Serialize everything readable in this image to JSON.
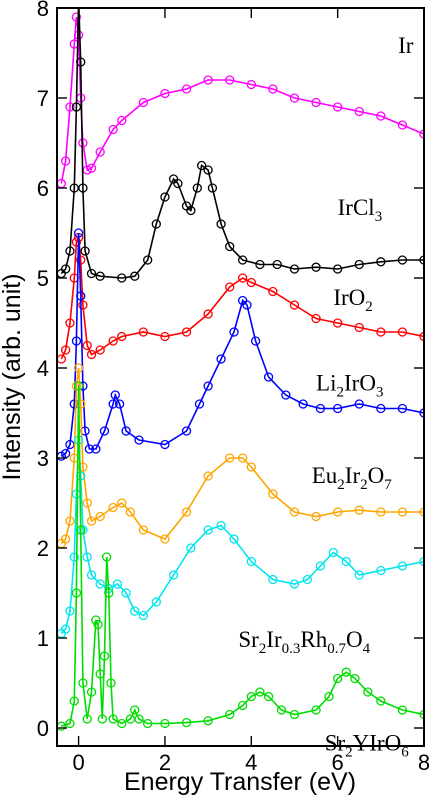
{
  "chart_data": {
    "type": "line",
    "xlabel": "Energy Transfer (eV)",
    "ylabel": "Intensity (arb. unit)",
    "xlim": [
      -0.5,
      8
    ],
    "ylim": [
      -0.2,
      8
    ],
    "xticks": [
      0,
      2,
      4,
      6,
      8
    ],
    "yticks": [
      0,
      1,
      2,
      3,
      4,
      5,
      6,
      7,
      8
    ],
    "grid": false,
    "legend": "inline-labels-right",
    "series": [
      {
        "name": "Ir",
        "label_parts": [
          {
            "t": "Ir"
          }
        ],
        "color": "#ff00ff",
        "label_pos": [
          7.4,
          7.5
        ],
        "points": [
          [
            -0.4,
            6.05
          ],
          [
            -0.3,
            6.3
          ],
          [
            -0.2,
            6.9
          ],
          [
            -0.1,
            7.6
          ],
          [
            -0.05,
            7.9
          ],
          [
            0.0,
            7.7
          ],
          [
            0.05,
            7.0
          ],
          [
            0.1,
            6.5
          ],
          [
            0.2,
            6.2
          ],
          [
            0.3,
            6.22
          ],
          [
            0.5,
            6.4
          ],
          [
            0.8,
            6.65
          ],
          [
            1.0,
            6.75
          ],
          [
            1.5,
            6.95
          ],
          [
            2.0,
            7.05
          ],
          [
            2.5,
            7.1
          ],
          [
            3.0,
            7.2
          ],
          [
            3.5,
            7.2
          ],
          [
            4.0,
            7.15
          ],
          [
            4.5,
            7.1
          ],
          [
            5.0,
            7.0
          ],
          [
            5.5,
            6.95
          ],
          [
            6.0,
            6.9
          ],
          [
            6.5,
            6.85
          ],
          [
            7.0,
            6.8
          ],
          [
            7.5,
            6.7
          ],
          [
            8.0,
            6.6
          ]
        ]
      },
      {
        "name": "IrCl3",
        "label_parts": [
          {
            "t": "IrCl"
          },
          {
            "t": "3",
            "sub": true
          }
        ],
        "color": "#000000",
        "label_pos": [
          6.0,
          5.7
        ],
        "points": [
          [
            -0.4,
            5.05
          ],
          [
            -0.3,
            5.1
          ],
          [
            -0.2,
            5.3
          ],
          [
            -0.1,
            6.0
          ],
          [
            -0.05,
            6.9
          ],
          [
            0.0,
            8.1
          ],
          [
            0.05,
            7.4
          ],
          [
            0.1,
            6.0
          ],
          [
            0.15,
            5.3
          ],
          [
            0.3,
            5.05
          ],
          [
            0.5,
            5.02
          ],
          [
            1.0,
            5.0
          ],
          [
            1.3,
            5.02
          ],
          [
            1.6,
            5.2
          ],
          [
            1.8,
            5.6
          ],
          [
            2.0,
            5.9
          ],
          [
            2.2,
            6.1
          ],
          [
            2.3,
            6.05
          ],
          [
            2.5,
            5.8
          ],
          [
            2.6,
            5.75
          ],
          [
            2.75,
            6.0
          ],
          [
            2.85,
            6.25
          ],
          [
            3.0,
            6.2
          ],
          [
            3.1,
            6.0
          ],
          [
            3.3,
            5.6
          ],
          [
            3.5,
            5.35
          ],
          [
            3.8,
            5.2
          ],
          [
            4.2,
            5.15
          ],
          [
            4.6,
            5.15
          ],
          [
            5.0,
            5.1
          ],
          [
            5.5,
            5.12
          ],
          [
            6.0,
            5.1
          ],
          [
            6.5,
            5.15
          ],
          [
            7.0,
            5.18
          ],
          [
            7.5,
            5.2
          ],
          [
            8.0,
            5.2
          ]
        ]
      },
      {
        "name": "IrO2",
        "label_parts": [
          {
            "t": "IrO"
          },
          {
            "t": "2",
            "sub": true
          }
        ],
        "color": "#ff0000",
        "label_pos": [
          5.9,
          4.7
        ],
        "points": [
          [
            -0.4,
            4.1
          ],
          [
            -0.3,
            4.2
          ],
          [
            -0.2,
            4.5
          ],
          [
            -0.1,
            5.0
          ],
          [
            -0.05,
            5.4
          ],
          [
            0.0,
            5.45
          ],
          [
            0.05,
            5.2
          ],
          [
            0.1,
            4.7
          ],
          [
            0.2,
            4.25
          ],
          [
            0.3,
            4.15
          ],
          [
            0.5,
            4.2
          ],
          [
            0.8,
            4.3
          ],
          [
            1.0,
            4.35
          ],
          [
            1.5,
            4.4
          ],
          [
            2.0,
            4.35
          ],
          [
            2.5,
            4.4
          ],
          [
            3.0,
            4.6
          ],
          [
            3.5,
            4.9
          ],
          [
            3.8,
            5.0
          ],
          [
            4.0,
            4.95
          ],
          [
            4.5,
            4.85
          ],
          [
            5.0,
            4.7
          ],
          [
            5.5,
            4.55
          ],
          [
            6.0,
            4.5
          ],
          [
            6.5,
            4.45
          ],
          [
            7.0,
            4.4
          ],
          [
            7.5,
            4.4
          ],
          [
            8.0,
            4.35
          ]
        ]
      },
      {
        "name": "Li2IrO3",
        "label_parts": [
          {
            "t": "Li"
          },
          {
            "t": "2",
            "sub": true
          },
          {
            "t": "IrO"
          },
          {
            "t": "3",
            "sub": true
          }
        ],
        "color": "#0000ff",
        "label_pos": [
          5.5,
          3.75
        ],
        "points": [
          [
            -0.4,
            3.02
          ],
          [
            -0.3,
            3.05
          ],
          [
            -0.2,
            3.15
          ],
          [
            -0.1,
            3.6
          ],
          [
            -0.05,
            4.3
          ],
          [
            0.0,
            5.5
          ],
          [
            0.05,
            4.8
          ],
          [
            0.1,
            3.8
          ],
          [
            0.15,
            3.3
          ],
          [
            0.25,
            3.1
          ],
          [
            0.4,
            3.1
          ],
          [
            0.6,
            3.3
          ],
          [
            0.8,
            3.6
          ],
          [
            0.85,
            3.7
          ],
          [
            0.95,
            3.6
          ],
          [
            1.1,
            3.3
          ],
          [
            1.4,
            3.2
          ],
          [
            2.0,
            3.15
          ],
          [
            2.5,
            3.3
          ],
          [
            2.8,
            3.6
          ],
          [
            3.0,
            3.8
          ],
          [
            3.3,
            4.1
          ],
          [
            3.6,
            4.4
          ],
          [
            3.8,
            4.75
          ],
          [
            3.9,
            4.7
          ],
          [
            4.1,
            4.3
          ],
          [
            4.4,
            3.9
          ],
          [
            4.8,
            3.7
          ],
          [
            5.2,
            3.6
          ],
          [
            5.6,
            3.55
          ],
          [
            6.0,
            3.55
          ],
          [
            6.5,
            3.6
          ],
          [
            7.0,
            3.55
          ],
          [
            7.5,
            3.55
          ],
          [
            8.0,
            3.5
          ]
        ]
      },
      {
        "name": "Eu2Ir2O7",
        "label_parts": [
          {
            "t": "Eu"
          },
          {
            "t": "2",
            "sub": true
          },
          {
            "t": "Ir"
          },
          {
            "t": "2",
            "sub": true
          },
          {
            "t": "O"
          },
          {
            "t": "7",
            "sub": true
          }
        ],
        "color": "#ffa500",
        "label_pos": [
          5.4,
          2.72
        ],
        "points": [
          [
            -0.4,
            2.05
          ],
          [
            -0.3,
            2.1
          ],
          [
            -0.2,
            2.3
          ],
          [
            -0.1,
            3.0
          ],
          [
            -0.05,
            3.8
          ],
          [
            0.0,
            4.0
          ],
          [
            0.05,
            3.6
          ],
          [
            0.1,
            2.9
          ],
          [
            0.2,
            2.5
          ],
          [
            0.3,
            2.3
          ],
          [
            0.5,
            2.35
          ],
          [
            0.8,
            2.45
          ],
          [
            1.0,
            2.5
          ],
          [
            1.2,
            2.4
          ],
          [
            1.5,
            2.2
          ],
          [
            2.0,
            2.1
          ],
          [
            2.5,
            2.4
          ],
          [
            3.0,
            2.8
          ],
          [
            3.5,
            3.0
          ],
          [
            3.8,
            3.0
          ],
          [
            4.0,
            2.9
          ],
          [
            4.5,
            2.6
          ],
          [
            5.0,
            2.4
          ],
          [
            5.5,
            2.35
          ],
          [
            6.0,
            2.4
          ],
          [
            6.5,
            2.42
          ],
          [
            7.0,
            2.4
          ],
          [
            7.5,
            2.4
          ],
          [
            8.0,
            2.4
          ]
        ]
      },
      {
        "name": "Sr2Ir0.3Rh0.7O4",
        "label_parts": [
          {
            "t": "Sr"
          },
          {
            "t": "2",
            "sub": true
          },
          {
            "t": "Ir"
          },
          {
            "t": "0.3",
            "sub": true
          },
          {
            "t": "Rh"
          },
          {
            "t": "0.7",
            "sub": true
          },
          {
            "t": "O"
          },
          {
            "t": "4",
            "sub": true
          }
        ],
        "color": "#00e5ee",
        "label_pos": [
          3.7,
          0.9
        ],
        "points": [
          [
            -0.4,
            1.05
          ],
          [
            -0.3,
            1.1
          ],
          [
            -0.2,
            1.3
          ],
          [
            -0.1,
            1.9
          ],
          [
            -0.05,
            2.6
          ],
          [
            0.0,
            3.2
          ],
          [
            0.05,
            2.8
          ],
          [
            0.1,
            2.2
          ],
          [
            0.2,
            1.9
          ],
          [
            0.3,
            1.7
          ],
          [
            0.5,
            1.6
          ],
          [
            0.7,
            1.55
          ],
          [
            0.9,
            1.6
          ],
          [
            1.1,
            1.5
          ],
          [
            1.3,
            1.3
          ],
          [
            1.5,
            1.25
          ],
          [
            1.8,
            1.4
          ],
          [
            2.2,
            1.7
          ],
          [
            2.6,
            2.0
          ],
          [
            3.0,
            2.2
          ],
          [
            3.3,
            2.25
          ],
          [
            3.6,
            2.1
          ],
          [
            4.0,
            1.85
          ],
          [
            4.5,
            1.65
          ],
          [
            5.0,
            1.6
          ],
          [
            5.3,
            1.65
          ],
          [
            5.6,
            1.8
          ],
          [
            5.9,
            1.95
          ],
          [
            6.2,
            1.85
          ],
          [
            6.5,
            1.7
          ],
          [
            7.0,
            1.75
          ],
          [
            7.5,
            1.8
          ],
          [
            8.0,
            1.85
          ]
        ]
      },
      {
        "name": "Sr2YIrO6",
        "label_parts": [
          {
            "t": "Sr"
          },
          {
            "t": "2",
            "sub": true
          },
          {
            "t": "YIrO"
          },
          {
            "t": "6",
            "sub": true
          }
        ],
        "color": "#00dd00",
        "label_pos": [
          5.7,
          -0.25
        ],
        "points": [
          [
            -0.4,
            0.02
          ],
          [
            -0.2,
            0.05
          ],
          [
            -0.1,
            0.3
          ],
          [
            -0.05,
            1.5
          ],
          [
            0.0,
            3.8
          ],
          [
            0.05,
            2.2
          ],
          [
            0.1,
            0.5
          ],
          [
            0.2,
            0.1
          ],
          [
            0.3,
            0.4
          ],
          [
            0.4,
            1.2
          ],
          [
            0.45,
            1.15
          ],
          [
            0.5,
            0.6
          ],
          [
            0.55,
            0.1
          ],
          [
            0.6,
            0.8
          ],
          [
            0.65,
            1.9
          ],
          [
            0.7,
            1.5
          ],
          [
            0.75,
            0.5
          ],
          [
            0.8,
            0.1
          ],
          [
            1.0,
            0.05
          ],
          [
            1.2,
            0.1
          ],
          [
            1.3,
            0.2
          ],
          [
            1.4,
            0.1
          ],
          [
            1.6,
            0.05
          ],
          [
            2.0,
            0.05
          ],
          [
            2.5,
            0.06
          ],
          [
            3.0,
            0.08
          ],
          [
            3.5,
            0.15
          ],
          [
            3.8,
            0.25
          ],
          [
            4.0,
            0.35
          ],
          [
            4.2,
            0.4
          ],
          [
            4.4,
            0.35
          ],
          [
            4.7,
            0.2
          ],
          [
            5.0,
            0.15
          ],
          [
            5.5,
            0.2
          ],
          [
            5.8,
            0.35
          ],
          [
            6.0,
            0.55
          ],
          [
            6.2,
            0.62
          ],
          [
            6.4,
            0.55
          ],
          [
            6.7,
            0.4
          ],
          [
            7.0,
            0.3
          ],
          [
            7.5,
            0.2
          ],
          [
            8.0,
            0.15
          ]
        ]
      }
    ]
  }
}
